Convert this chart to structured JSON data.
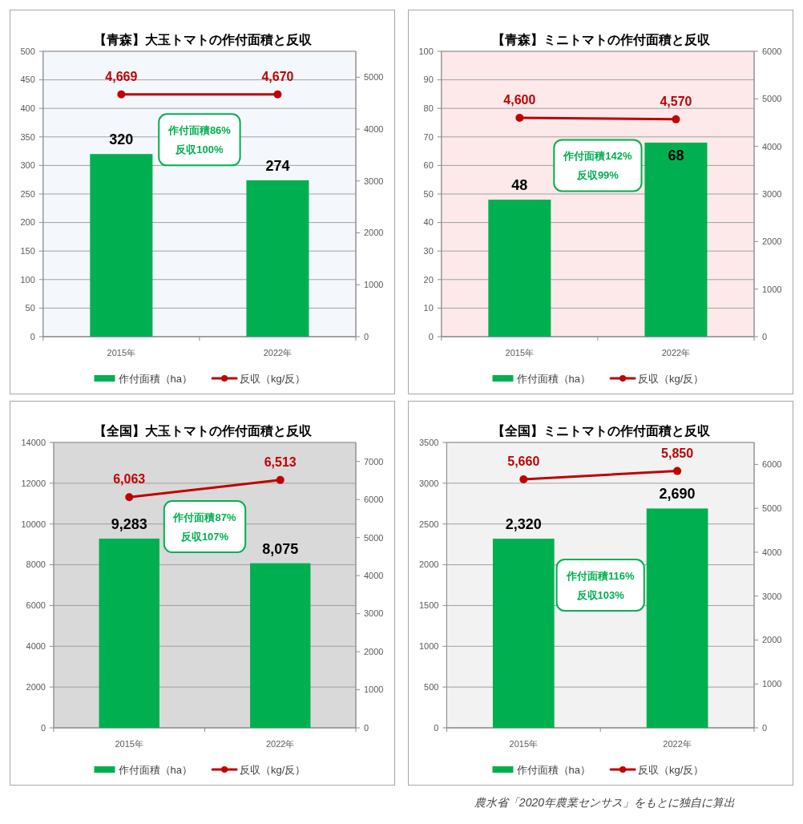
{
  "chart_data": [
    {
      "type": "bar",
      "title": "【青森】大玉トマトの作付面積と反収",
      "categories": [
        "2015年",
        "2022年"
      ],
      "series": [
        {
          "name": "作付面積（ha）",
          "color": "#00b050",
          "values": [
            320,
            274
          ],
          "value_labels": [
            "320",
            "274"
          ]
        },
        {
          "name": "反収（kg/反）",
          "type": "line",
          "axis": "y2",
          "color": "#c00000",
          "values": [
            4669,
            4670
          ],
          "value_labels": [
            "4,669",
            "4,670"
          ]
        }
      ],
      "ylim": [
        0,
        500
      ],
      "yticks": [
        0,
        50,
        100,
        150,
        200,
        250,
        300,
        350,
        400,
        450,
        500
      ],
      "y2lim": [
        0,
        5500
      ],
      "y2ticks": [
        0,
        1000,
        2000,
        3000,
        4000,
        5000
      ],
      "grid": "y",
      "legend": "bottom",
      "marker": "circle",
      "annotations": [
        "作付面積86%\n反収100%"
      ]
    },
    {
      "type": "bar",
      "title": "【青森】ミニトマトの作付面積と反収",
      "categories": [
        "2015年",
        "2022年"
      ],
      "series": [
        {
          "name": "作付面積（ha）",
          "color": "#00b050",
          "values": [
            48,
            68
          ],
          "value_labels": [
            "48",
            "68"
          ]
        },
        {
          "name": "反収（kg/反）",
          "type": "line",
          "axis": "y2",
          "color": "#c00000",
          "values": [
            4600,
            4570
          ],
          "value_labels": [
            "4,600",
            "4,570"
          ]
        }
      ],
      "ylim": [
        0,
        100
      ],
      "yticks": [
        0,
        10,
        20,
        30,
        40,
        50,
        60,
        70,
        80,
        90,
        100
      ],
      "y2lim": [
        0,
        6000
      ],
      "y2ticks": [
        0,
        1000,
        2000,
        3000,
        4000,
        5000,
        6000
      ],
      "grid": "y",
      "legend": "bottom",
      "marker": "circle",
      "annotations": [
        "作付面積142%\n反収99%"
      ]
    },
    {
      "type": "bar",
      "title": "【全国】大玉トマトの作付面積と反収",
      "categories": [
        "2015年",
        "2022年"
      ],
      "series": [
        {
          "name": "作付面積（ha）",
          "color": "#00b050",
          "values": [
            9283,
            8075
          ],
          "value_labels": [
            "9,283",
            "8,075"
          ]
        },
        {
          "name": "反収（kg/反）",
          "type": "line",
          "axis": "y2",
          "color": "#c00000",
          "values": [
            6063,
            6513
          ],
          "value_labels": [
            "6,063",
            "6,513"
          ]
        }
      ],
      "ylim": [
        0,
        14000
      ],
      "yticks": [
        0,
        2000,
        4000,
        6000,
        8000,
        10000,
        12000,
        14000
      ],
      "y2lim": [
        0,
        7500
      ],
      "y2ticks": [
        0,
        1000,
        2000,
        3000,
        4000,
        5000,
        6000,
        7000
      ],
      "grid": "y",
      "legend": "bottom",
      "marker": "circle",
      "annotations": [
        "作付面積87%\n反収107%"
      ]
    },
    {
      "type": "bar",
      "title": "【全国】ミニトマトの作付面積と反収",
      "categories": [
        "2015年",
        "2022年"
      ],
      "series": [
        {
          "name": "作付面積（ha）",
          "color": "#00b050",
          "values": [
            2320,
            2690
          ],
          "value_labels": [
            "2,320",
            "2,690"
          ]
        },
        {
          "name": "反収（kg/反）",
          "type": "line",
          "axis": "y2",
          "color": "#c00000",
          "values": [
            5660,
            5850
          ],
          "value_labels": [
            "5,660",
            "5,850"
          ]
        }
      ],
      "ylim": [
        0,
        3500
      ],
      "yticks": [
        0,
        500,
        1000,
        1500,
        2000,
        2500,
        3000,
        3500
      ],
      "y2lim": [
        0,
        6500
      ],
      "y2ticks": [
        0,
        1000,
        2000,
        3000,
        4000,
        5000,
        6000
      ],
      "grid": "y",
      "legend": "bottom",
      "marker": "circle",
      "annotations": [
        "作付面積116%\n反収103%",
        "農水省「2020年農業センサス」をもとに独自に算出"
      ]
    }
  ]
}
